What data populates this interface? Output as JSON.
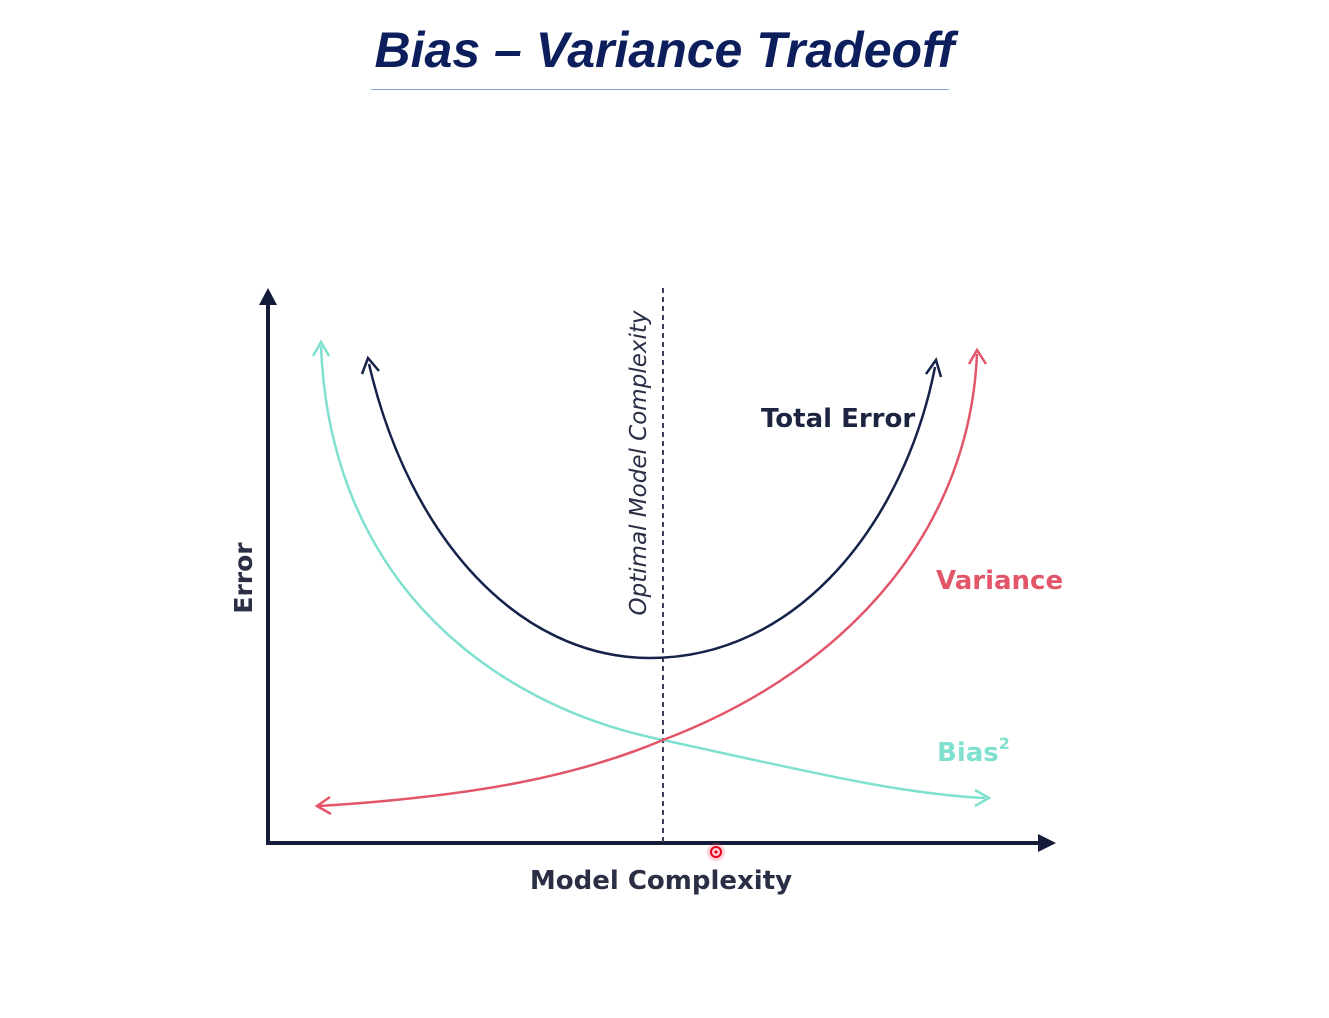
{
  "slide": {
    "title": "Bias – Variance Tradeoff"
  },
  "chart_data": {
    "type": "line",
    "xlabel": "Model Complexity",
    "ylabel": "Error",
    "grid": false,
    "annotations": {
      "optimal_line_label": "Optimal Model Complexity"
    },
    "series": [
      {
        "name": "Total Error",
        "label": "Total Error",
        "color": "#15224a",
        "shape": "u-curve"
      },
      {
        "name": "Variance",
        "label": "Variance",
        "color": "#e3566a",
        "shape": "increasing"
      },
      {
        "name": "Bias",
        "label": "Bias",
        "label_superscript": "2",
        "color": "#7fe0cf",
        "shape": "decreasing"
      }
    ],
    "colors": {
      "axis": "#141c3a",
      "optimal_line": "#3b3f55",
      "cursor": "#e8001c"
    }
  }
}
